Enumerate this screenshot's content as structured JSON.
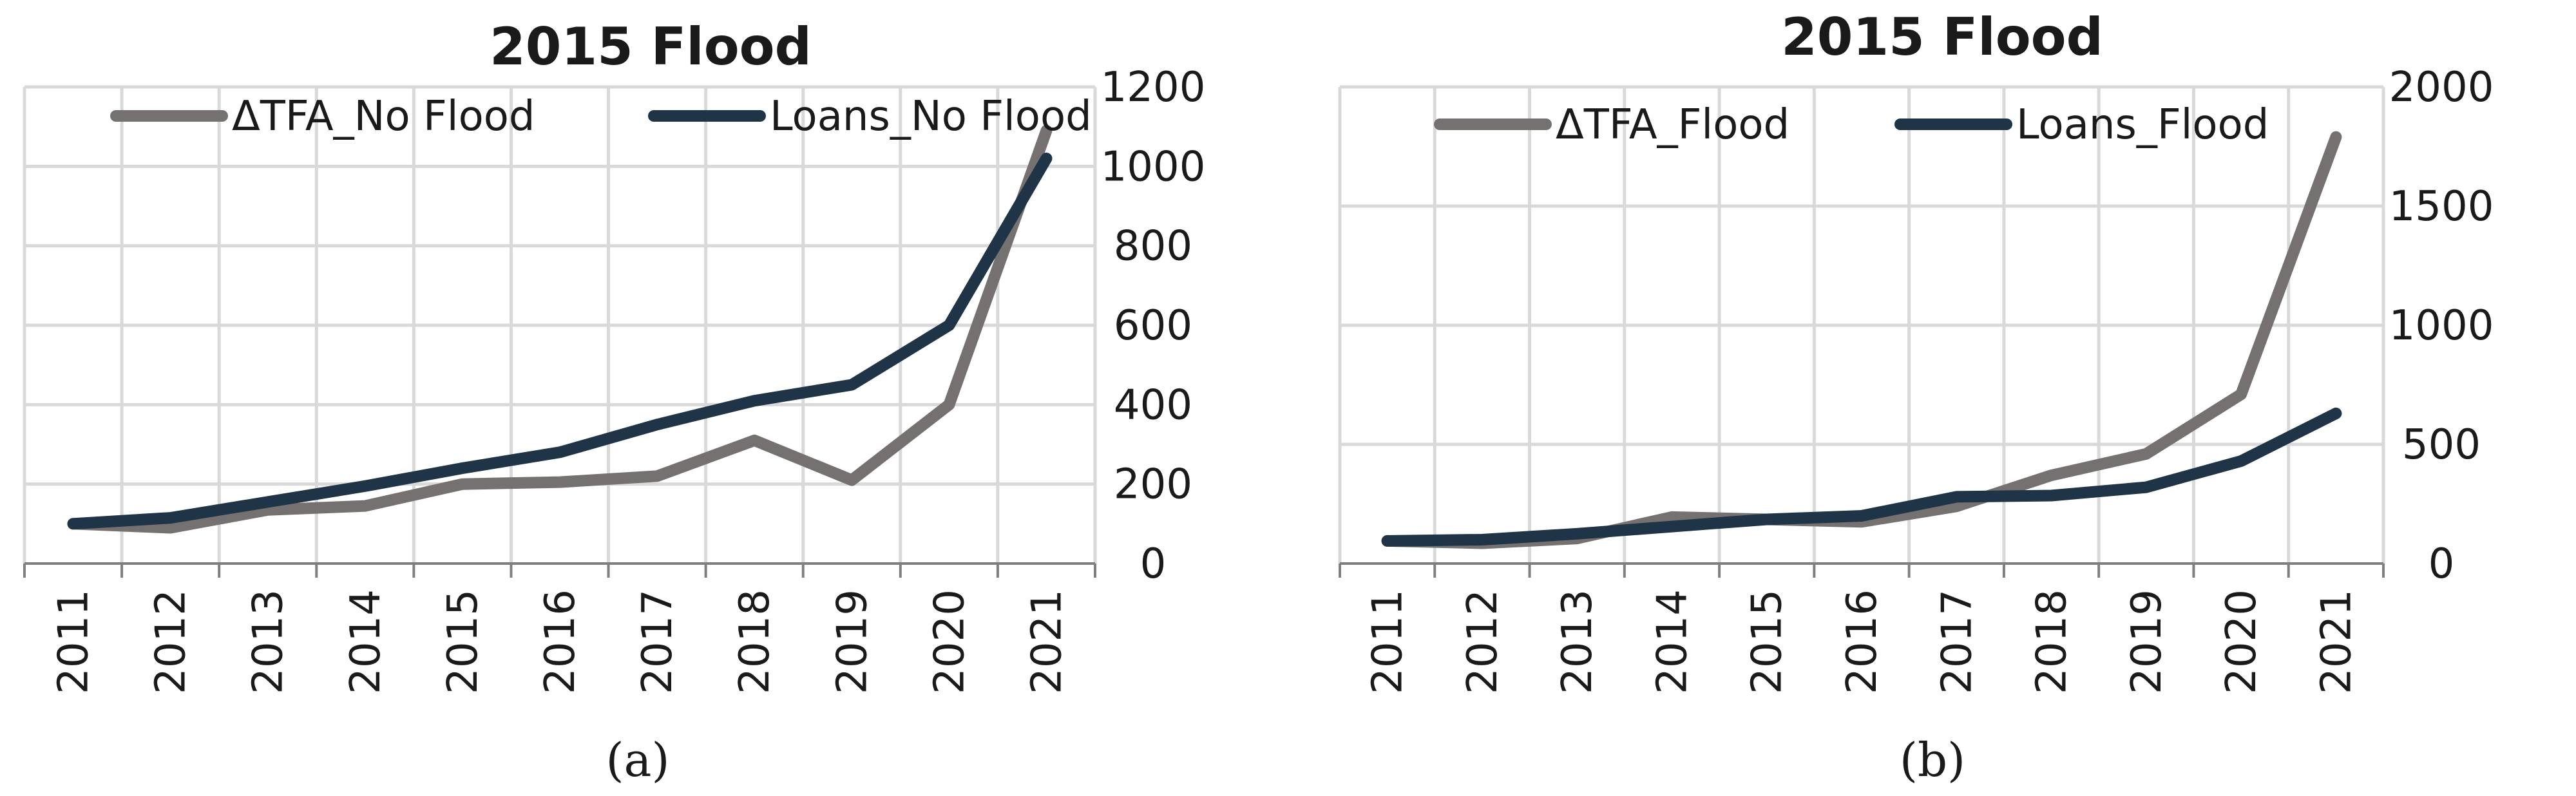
{
  "chart_data": [
    {
      "type": "line",
      "title": "2015 Flood",
      "caption": "(a)",
      "categories": [
        "2011",
        "2012",
        "2013",
        "2014",
        "2015",
        "2016",
        "2017",
        "2018",
        "2019",
        "2020",
        "2021"
      ],
      "series": [
        {
          "name": "ΔTFA_No Flood",
          "color": "#767171",
          "values": [
            100,
            90,
            135,
            145,
            200,
            205,
            220,
            310,
            210,
            400,
            1090
          ]
        },
        {
          "name": "Loans_No Flood",
          "color": "#1f3447",
          "values": [
            100,
            115,
            155,
            195,
            240,
            280,
            350,
            410,
            450,
            600,
            1020
          ]
        }
      ],
      "ylim": [
        0,
        1200
      ],
      "yticks": [
        0,
        200,
        400,
        600,
        800,
        1000,
        1200
      ],
      "y_axis_side": "right",
      "grid": true,
      "legend": "top"
    },
    {
      "type": "line",
      "title": "2015 Flood",
      "caption": "(b)",
      "categories": [
        "2011",
        "2012",
        "2013",
        "2014",
        "2015",
        "2016",
        "2017",
        "2018",
        "2019",
        "2020",
        "2021"
      ],
      "series": [
        {
          "name": "ΔTFA_Flood",
          "color": "#767171",
          "values": [
            95,
            85,
            105,
            195,
            185,
            175,
            240,
            370,
            460,
            710,
            1790
          ]
        },
        {
          "name": "Loans_Flood",
          "color": "#1f3447",
          "values": [
            95,
            100,
            125,
            155,
            185,
            200,
            280,
            285,
            320,
            430,
            630
          ]
        }
      ],
      "ylim": [
        0,
        2000
      ],
      "yticks": [
        0,
        500,
        1000,
        1500,
        2000
      ],
      "y_axis_side": "right",
      "grid": true,
      "legend": "top"
    }
  ]
}
